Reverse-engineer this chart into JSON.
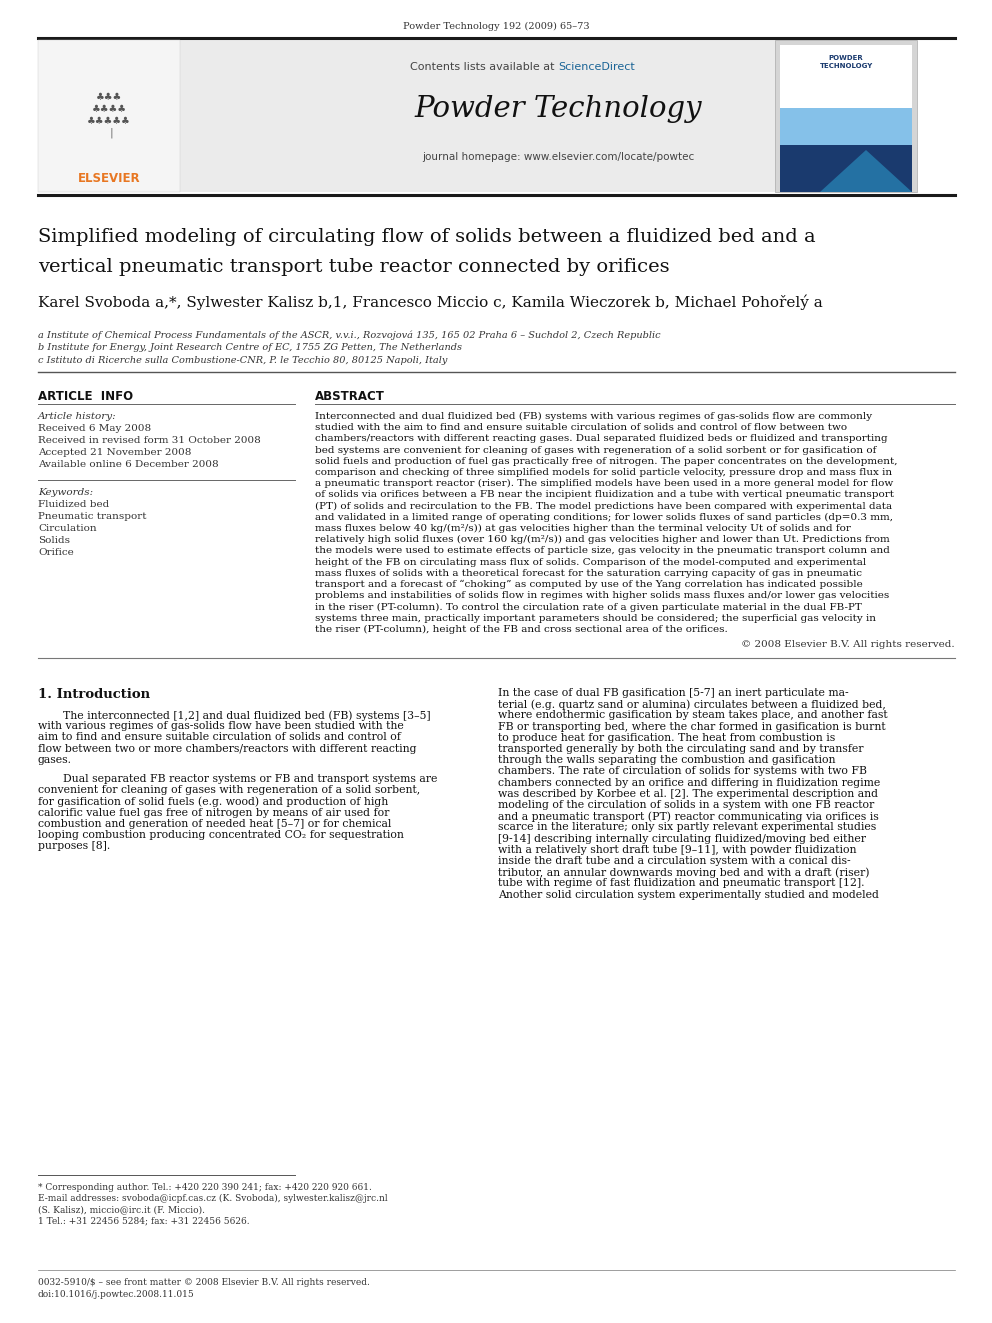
{
  "page_width": 9.92,
  "page_height": 13.23,
  "bg_color": "#ffffff",
  "top_citation": "Powder Technology 192 (2009) 65–73",
  "sciencedirect_color": "#1a6496",
  "journal_name": "Powder Technology",
  "journal_homepage": "journal homepage: www.elsevier.com/locate/powtec",
  "title_line1": "Simplified modeling of circulating flow of solids between a fluidized bed and a",
  "title_line2": "vertical pneumatic transport tube reactor connected by orifices",
  "authors_text": "Karel Svoboda a,*, Sylwester Kalisz b,1, Francesco Miccio c, Kamila Wieczorek b, Michael Pohořelý a",
  "affil_a": "a Institute of Chemical Process Fundamentals of the ASCR, v.v.i., Rozvojová 135, 165 02 Praha 6 – Suchdol 2, Czech Republic",
  "affil_b": "b Institute for Energy, Joint Research Centre of EC, 1755 ZG Petten, The Netherlands",
  "affil_c": "c Istituto di Ricerche sulla Combustione-CNR, P. le Tecchio 80, 80125 Napoli, Italy",
  "article_info_header": "ARTICLE  INFO",
  "article_history_header": "Article history:",
  "received": "Received 6 May 2008",
  "revised": "Received in revised form 31 October 2008",
  "accepted": "Accepted 21 November 2008",
  "available": "Available online 6 December 2008",
  "keywords_header": "Keywords:",
  "kw1": "Fluidized bed",
  "kw2": "Pneumatic transport",
  "kw3": "Circulation",
  "kw4": "Solids",
  "kw5": "Orifice",
  "abstract_header": "ABSTRACT",
  "abstract_text": "Interconnected and dual fluidized bed (FB) systems with various regimes of gas-solids flow are commonly\nstudied with the aim to find and ensure suitable circulation of solids and control of flow between two\nchambers/reactors with different reacting gases. Dual separated fluidized beds or fluidized and transporting\nbed systems are convenient for cleaning of gases with regeneration of a solid sorbent or for gasification of\nsolid fuels and production of fuel gas practically free of nitrogen. The paper concentrates on the development,\ncomparison and checking of three simplified models for solid particle velocity, pressure drop and mass flux in\na pneumatic transport reactor (riser). The simplified models have been used in a more general model for flow\nof solids via orifices between a FB near the incipient fluidization and a tube with vertical pneumatic transport\n(PT) of solids and recirculation to the FB. The model predictions have been compared with experimental data\nand validated in a limited range of operating conditions; for lower solids fluxes of sand particles (dp=0.3 mm,\nmass fluxes below 40 kg/(m²/s)) at gas velocities higher than the terminal velocity Ut of solids and for\nrelatively high solid fluxes (over 160 kg/(m²/s)) and gas velocities higher and lower than Ut. Predictions from\nthe models were used to estimate effects of particle size, gas velocity in the pneumatic transport column and\nheight of the FB on circulating mass flux of solids. Comparison of the model-computed and experimental\nmass fluxes of solids with a theoretical forecast for the saturation carrying capacity of gas in pneumatic\ntransport and a forecast of “choking” as computed by use of the Yang correlation has indicated possible\nproblems and instabilities of solids flow in regimes with higher solids mass fluxes and/or lower gas velocities\nin the riser (PT-column). To control the circulation rate of a given particulate material in the dual FB-PT\nsystems three main, practically important parameters should be considered; the superficial gas velocity in\nthe riser (PT-column), height of the FB and cross sectional area of the orifices.",
  "copyright": "© 2008 Elsevier B.V. All rights reserved.",
  "section1_header": "1. Introduction",
  "intro_left_para1": "The interconnected [1,2] and dual fluidized bed (FB) systems [3–5]\nwith various regimes of gas-solids flow have been studied with the\naim to find and ensure suitable circulation of solids and control of\nflow between two or more chambers/reactors with different reacting\ngases.",
  "intro_left_para2": "Dual separated FB reactor systems or FB and transport systems are\nconvenient for cleaning of gases with regeneration of a solid sorbent,\nfor gasification of solid fuels (e.g. wood) and production of high\ncalorific value fuel gas free of nitrogen by means of air used for\ncombustion and generation of needed heat [5–7] or for chemical\nlooping combustion producing concentrated CO₂ for sequestration\npurposes [8].",
  "intro_right": "In the case of dual FB gasification [5-7] an inert particulate ma-\nterial (e.g. quartz sand or alumina) circulates between a fluidized bed,\nwhere endothermic gasification by steam takes place, and another fast\nFB or transporting bed, where the char formed in gasification is burnt\nto produce heat for gasification. The heat from combustion is\ntransported generally by both the circulating sand and by transfer\nthrough the walls separating the combustion and gasification\nchambers. The rate of circulation of solids for systems with two FB\nchambers connected by an orifice and differing in fluidization regime\nwas described by Korbee et al. [2]. The experimental description and\nmodeling of the circulation of solids in a system with one FB reactor\nand a pneumatic transport (PT) reactor communicating via orifices is\nscarce in the literature; only six partly relevant experimental studies\n[9-14] describing internally circulating fluidized/moving bed either\nwith a relatively short draft tube [9–11], with powder fluidization\ninside the draft tube and a circulation system with a conical dis-\ntributor, an annular downwards moving bed and with a draft (riser)\ntube with regime of fast fluidization and pneumatic transport [12].\nAnother solid circulation system experimentally studied and modeled",
  "footnote1": "* Corresponding author. Tel.: +420 220 390 241; fax: +420 220 920 661.",
  "footnote2": "E-mail addresses: svoboda@icpf.cas.cz (K. Svoboda), sylwester.kalisz@jrc.nl",
  "footnote3": "(S. Kalisz), miccio@irc.it (F. Miccio).",
  "footnote4": "1 Tel.: +31 22456 5284; fax: +31 22456 5626.",
  "bottom_issn": "0032-5910/$ – see front matter © 2008 Elsevier B.V. All rights reserved.",
  "bottom_doi": "doi:10.1016/j.powtec.2008.11.015",
  "elsevier_color": "#e87722",
  "cover_text": "POWDER\nTECHNOLOGY",
  "cover_blue": "#2471a3",
  "cover_lightblue": "#85c1e9"
}
